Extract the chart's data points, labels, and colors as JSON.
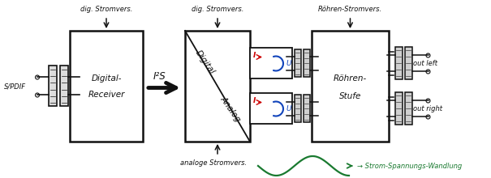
{
  "bg_color": "#ffffff",
  "ink_color": "#111111",
  "red_color": "#cc0000",
  "blue_color": "#1144bb",
  "green_color": "#1a7a30",
  "spdif_label": "S/PDIF",
  "block1_label_top": "Digital-",
  "block1_label_bot": "Receiver",
  "i2s_label": "I²S",
  "block2_label_top": "Digital",
  "block2_label_bot": "Analog",
  "block3_label_top": "Röhren-",
  "block3_label_bot": "Stufe",
  "out_left_label": "out left",
  "out_right_label": "out right",
  "top_label1": "dig. Stromvers.",
  "top_label2": "dig. Stromvers.",
  "top_label3": "Röhren-Stromvers.",
  "bottom_label_analog": "analoge Stromvers.",
  "bottom_label_conversion": "→ Strom-Spannungs-Wandlung",
  "figw": 6.05,
  "figh": 2.2,
  "dpi": 100
}
